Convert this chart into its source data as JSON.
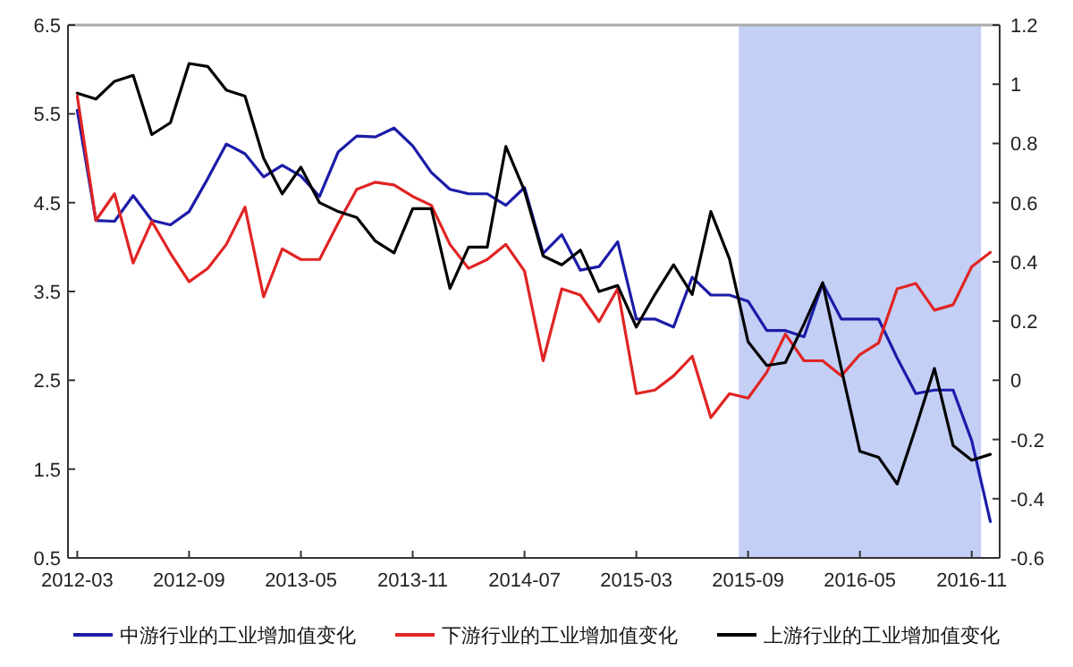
{
  "chart_data": {
    "type": "line",
    "categories": [
      "2012-03",
      null,
      null,
      null,
      null,
      null,
      "2012-09",
      null,
      null,
      null,
      null,
      null,
      "2013-05",
      null,
      null,
      null,
      null,
      null,
      "2013-11",
      null,
      null,
      null,
      null,
      null,
      "2014-07",
      null,
      null,
      null,
      null,
      null,
      "2015-03",
      null,
      null,
      null,
      null,
      null,
      "2015-09",
      null,
      null,
      null,
      null,
      null,
      "2016-05",
      null,
      null,
      null,
      null,
      null,
      "2016-11",
      null
    ],
    "series": [
      {
        "name": "中游行业的工业增加值变化",
        "color": "#1c1ca8",
        "values": [
          5.54,
          4.3,
          4.29,
          4.58,
          4.3,
          4.25,
          4.4,
          4.77,
          5.16,
          5.05,
          4.79,
          4.92,
          4.8,
          4.57,
          5.07,
          5.25,
          5.24,
          5.34,
          5.14,
          4.84,
          4.65,
          4.6,
          4.6,
          4.47,
          4.67,
          3.93,
          4.14,
          3.74,
          3.78,
          4.06,
          3.19,
          3.19,
          3.1,
          3.66,
          3.46,
          3.46,
          3.39,
          3.06,
          3.06,
          2.99,
          3.59,
          3.19,
          3.19,
          3.19,
          2.75,
          2.35,
          2.39,
          2.39,
          1.82,
          0.91
        ]
      },
      {
        "name": "下游行业的工业增加值变化",
        "color": "#e02424",
        "values": [
          5.7,
          4.3,
          4.6,
          3.82,
          4.29,
          3.93,
          3.61,
          3.76,
          4.03,
          4.45,
          3.44,
          3.98,
          3.86,
          3.86,
          4.27,
          4.65,
          4.73,
          4.7,
          4.57,
          4.47,
          4.03,
          3.76,
          3.86,
          4.03,
          3.73,
          2.72,
          3.53,
          3.46,
          3.16,
          3.53,
          2.35,
          2.39,
          2.55,
          2.77,
          2.08,
          2.35,
          2.3,
          2.59,
          3.02,
          2.72,
          2.72,
          2.55,
          2.79,
          2.92,
          3.53,
          3.59,
          3.29,
          3.35,
          3.78,
          3.94
        ]
      },
      {
        "name": "上游行业的工业增加值变化",
        "color": "#000000",
        "axis": "y2",
        "values": [
          0.97,
          0.95,
          1.01,
          1.03,
          0.83,
          0.87,
          1.07,
          1.06,
          0.98,
          0.96,
          0.75,
          0.63,
          0.72,
          0.6,
          0.57,
          0.55,
          0.47,
          0.43,
          0.58,
          0.58,
          0.31,
          0.45,
          0.45,
          0.79,
          0.64,
          0.42,
          0.39,
          0.44,
          0.3,
          0.32,
          0.18,
          0.29,
          0.39,
          0.29,
          0.57,
          0.41,
          0.13,
          0.05,
          0.06,
          0.19,
          0.33,
          0.04,
          -0.24,
          -0.26,
          -0.35,
          -0.16,
          0.04,
          -0.22,
          -0.27,
          -0.25
        ]
      }
    ],
    "ylim": [
      0.5,
      6.5
    ],
    "yticks": [
      0.5,
      1.5,
      2.5,
      3.5,
      4.5,
      5.5,
      6.5
    ],
    "y2lim": [
      -0.6,
      1.2
    ],
    "y2ticks": [
      {
        "value": -0.6,
        "label": "-0.6"
      },
      {
        "value": -0.4,
        "label": "-0.4"
      },
      {
        "value": -0.2,
        "label": "-0.2"
      },
      0,
      0.2,
      0.4,
      0.6,
      0.8,
      1,
      1.2
    ],
    "bands": [
      {
        "axis": "x",
        "from": "2015-09",
        "to": "2016-11",
        "color": "#c3cff5"
      }
    ],
    "legend": "bottom",
    "grid": false,
    "marker": "none",
    "line_style": "solid"
  }
}
